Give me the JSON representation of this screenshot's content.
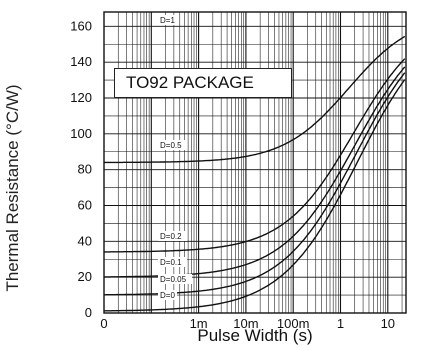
{
  "chart_data": {
    "type": "line",
    "title": "",
    "ylabel": "Thermal Resistance (°C/W)",
    "xlabel": "Pulse Width (s)",
    "x_scale": "log",
    "y_ticks": [
      0,
      20,
      40,
      60,
      80,
      100,
      120,
      140,
      160
    ],
    "ylim": [
      0,
      168
    ],
    "x_tick_labels": [
      "0",
      "1m",
      "10m",
      "100m",
      "1",
      "10"
    ],
    "grid": true,
    "annotation": "TO92 PACKAGE",
    "series": [
      {
        "name": "D=1",
        "x": [
          "100m",
          "20"
        ],
        "y": [
          null,
          null
        ]
      },
      {
        "name": "D=0.5",
        "x": [
          "10µ",
          "1m",
          "10m",
          "100m",
          "1",
          "10",
          "100"
        ],
        "y": [
          84,
          85,
          86,
          89,
          107,
          145,
          167
        ]
      },
      {
        "name": "D=0.2",
        "x": [
          "10µ",
          "1m",
          "10m",
          "100m",
          "1",
          "10",
          "100"
        ],
        "y": [
          34,
          35,
          37,
          44,
          70,
          134,
          167
        ]
      },
      {
        "name": "D=0.1",
        "x": [
          "10µ",
          "1m",
          "10m",
          "100m",
          "1",
          "10",
          "100"
        ],
        "y": [
          19,
          21,
          24,
          32,
          62,
          128,
          167
        ]
      },
      {
        "name": "D=0.05",
        "x": [
          "10µ",
          "1m",
          "10m",
          "100m",
          "1",
          "10",
          "100"
        ],
        "y": [
          10,
          12,
          15,
          25,
          57,
          125,
          167
        ]
      },
      {
        "name": "D=0",
        "x": [
          "10µ",
          "1m",
          "10m",
          "100m",
          "1",
          "10",
          "100"
        ],
        "y": [
          1,
          2,
          4,
          13,
          52,
          122,
          167
        ]
      }
    ]
  }
}
